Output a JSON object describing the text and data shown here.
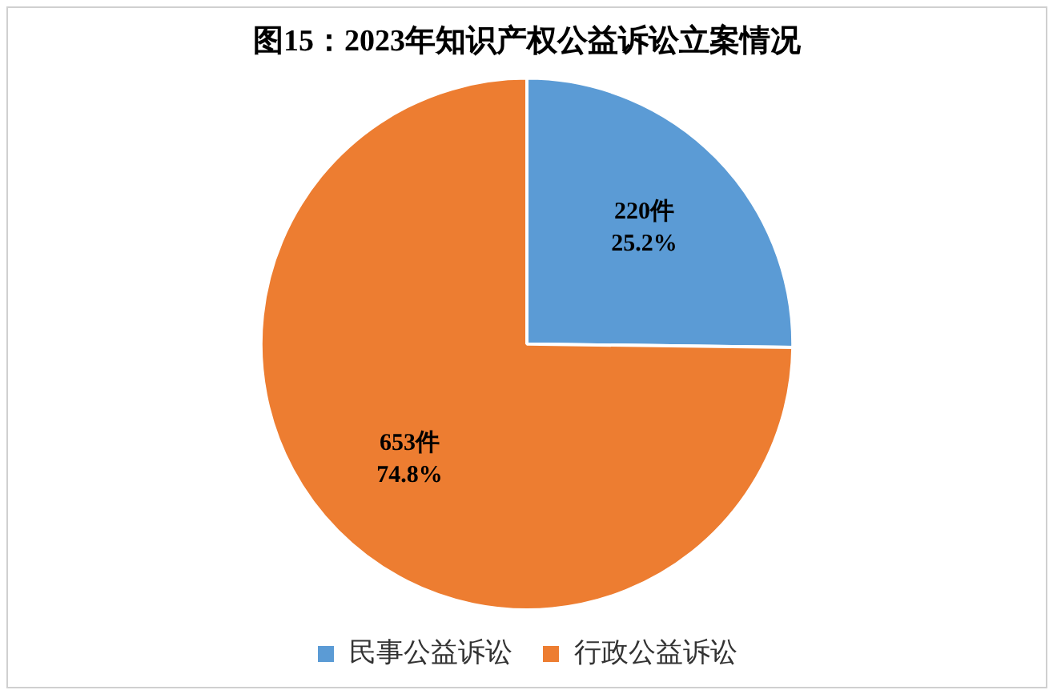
{
  "chart_data": {
    "type": "pie",
    "title": "图15：2023年知识产权公益诉讼立案情况",
    "categories": [
      "民事公益诉讼",
      "行政公益诉讼"
    ],
    "values": [
      220,
      653
    ],
    "colors": [
      "#5b9bd5",
      "#ed7d31"
    ],
    "value_labels": [
      "220件\n25.2%",
      "653件\n74.8%"
    ],
    "legend": "bottom"
  }
}
